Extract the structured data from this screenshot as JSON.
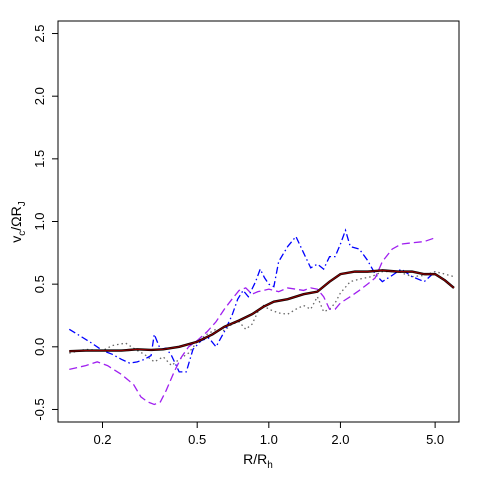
{
  "chart_data": {
    "type": "line",
    "title": "",
    "xlabel": {
      "base": "R/R",
      "sub": "h"
    },
    "ylabel": {
      "v": "v",
      "v_sub": "c",
      "rest": "/ΩR",
      "r_sub": "J"
    },
    "x_scale": "log",
    "xlim": [
      0.13,
      6.3
    ],
    "ylim": [
      -0.6,
      2.6
    ],
    "x_ticks": [
      0.2,
      0.5,
      1.0,
      2.0,
      5.0
    ],
    "x_tick_labels": [
      "0.2",
      "0.5",
      "1.0",
      "2.0",
      "5.0"
    ],
    "y_ticks": [
      -0.5,
      0.0,
      0.5,
      1.0,
      1.5,
      2.0,
      2.5
    ],
    "y_tick_labels": [
      "-0.5",
      "0.0",
      "0.5",
      "1.0",
      "1.5",
      "2.0",
      "2.5"
    ],
    "grid": false,
    "legend": "none",
    "series": [
      {
        "style": "solid",
        "color": "#000000",
        "overlay_color": "#8b0000",
        "points": [
          [
            0.145,
            -0.035
          ],
          [
            0.17,
            -0.03
          ],
          [
            0.2,
            -0.03
          ],
          [
            0.24,
            -0.03
          ],
          [
            0.28,
            -0.02
          ],
          [
            0.32,
            -0.025
          ],
          [
            0.36,
            -0.02
          ],
          [
            0.42,
            0.0
          ],
          [
            0.5,
            0.04
          ],
          [
            0.58,
            0.1
          ],
          [
            0.65,
            0.16
          ],
          [
            0.75,
            0.21
          ],
          [
            0.85,
            0.26
          ],
          [
            0.95,
            0.32
          ],
          [
            1.05,
            0.36
          ],
          [
            1.2,
            0.38
          ],
          [
            1.4,
            0.42
          ],
          [
            1.6,
            0.44
          ],
          [
            1.8,
            0.52
          ],
          [
            2.0,
            0.58
          ],
          [
            2.3,
            0.6
          ],
          [
            2.6,
            0.6
          ],
          [
            3.0,
            0.61
          ],
          [
            3.5,
            0.6
          ],
          [
            4.0,
            0.6
          ],
          [
            4.5,
            0.58
          ],
          [
            5.0,
            0.58
          ],
          [
            5.5,
            0.53
          ],
          [
            6.0,
            0.47
          ]
        ]
      },
      {
        "style": "dotted",
        "color": "#666666",
        "points": [
          [
            0.145,
            -0.05
          ],
          [
            0.17,
            -0.02
          ],
          [
            0.2,
            -0.03
          ],
          [
            0.22,
            0.01
          ],
          [
            0.25,
            0.03
          ],
          [
            0.28,
            -0.03
          ],
          [
            0.3,
            -0.06
          ],
          [
            0.33,
            -0.12
          ],
          [
            0.36,
            -0.08
          ],
          [
            0.39,
            -0.15
          ],
          [
            0.42,
            -0.1
          ],
          [
            0.46,
            -0.05
          ],
          [
            0.5,
            0.04
          ],
          [
            0.55,
            0.1
          ],
          [
            0.6,
            0.14
          ],
          [
            0.65,
            0.13
          ],
          [
            0.7,
            0.18
          ],
          [
            0.75,
            0.2
          ],
          [
            0.8,
            0.14
          ],
          [
            0.85,
            0.18
          ],
          [
            0.9,
            0.28
          ],
          [
            0.95,
            0.33
          ],
          [
            1.0,
            0.3
          ],
          [
            1.1,
            0.27
          ],
          [
            1.2,
            0.26
          ],
          [
            1.3,
            0.3
          ],
          [
            1.4,
            0.33
          ],
          [
            1.5,
            0.3
          ],
          [
            1.6,
            0.4
          ],
          [
            1.7,
            0.28
          ],
          [
            1.8,
            0.3
          ],
          [
            1.9,
            0.35
          ],
          [
            2.0,
            0.43
          ],
          [
            2.2,
            0.52
          ],
          [
            2.4,
            0.54
          ],
          [
            2.7,
            0.56
          ],
          [
            3.0,
            0.6
          ],
          [
            3.5,
            0.6
          ],
          [
            4.0,
            0.56
          ],
          [
            4.5,
            0.57
          ],
          [
            5.0,
            0.6
          ],
          [
            5.5,
            0.58
          ],
          [
            6.0,
            0.56
          ]
        ]
      },
      {
        "style": "dashdot",
        "color": "#0000ff",
        "points": [
          [
            0.145,
            0.14
          ],
          [
            0.16,
            0.09
          ],
          [
            0.18,
            0.03
          ],
          [
            0.2,
            -0.03
          ],
          [
            0.22,
            -0.06
          ],
          [
            0.24,
            -0.1
          ],
          [
            0.26,
            -0.13
          ],
          [
            0.28,
            -0.12
          ],
          [
            0.3,
            -0.1
          ],
          [
            0.32,
            -0.07
          ],
          [
            0.33,
            0.1
          ],
          [
            0.35,
            -0.02
          ],
          [
            0.37,
            -0.01
          ],
          [
            0.39,
            -0.07
          ],
          [
            0.42,
            -0.2
          ],
          [
            0.45,
            -0.2
          ],
          [
            0.48,
            -0.02
          ],
          [
            0.52,
            0.05
          ],
          [
            0.56,
            0.07
          ],
          [
            0.6,
            0.0
          ],
          [
            0.65,
            0.12
          ],
          [
            0.7,
            0.25
          ],
          [
            0.74,
            0.38
          ],
          [
            0.78,
            0.45
          ],
          [
            0.82,
            0.4
          ],
          [
            0.88,
            0.52
          ],
          [
            0.92,
            0.62
          ],
          [
            0.96,
            0.55
          ],
          [
            1.0,
            0.5
          ],
          [
            1.05,
            0.48
          ],
          [
            1.1,
            0.68
          ],
          [
            1.2,
            0.8
          ],
          [
            1.3,
            0.88
          ],
          [
            1.4,
            0.75
          ],
          [
            1.5,
            0.63
          ],
          [
            1.6,
            0.66
          ],
          [
            1.7,
            0.62
          ],
          [
            1.8,
            0.72
          ],
          [
            1.9,
            0.72
          ],
          [
            2.0,
            0.82
          ],
          [
            2.1,
            0.93
          ],
          [
            2.2,
            0.8
          ],
          [
            2.4,
            0.78
          ],
          [
            2.6,
            0.69
          ],
          [
            2.8,
            0.58
          ],
          [
            3.0,
            0.52
          ],
          [
            3.3,
            0.57
          ],
          [
            3.6,
            0.62
          ],
          [
            4.0,
            0.56
          ],
          [
            4.5,
            0.52
          ],
          [
            5.0,
            0.6
          ]
        ]
      },
      {
        "style": "dashed",
        "color": "#a020f0",
        "points": [
          [
            0.145,
            -0.18
          ],
          [
            0.17,
            -0.15
          ],
          [
            0.19,
            -0.12
          ],
          [
            0.21,
            -0.15
          ],
          [
            0.24,
            -0.22
          ],
          [
            0.27,
            -0.3
          ],
          [
            0.29,
            -0.4
          ],
          [
            0.31,
            -0.44
          ],
          [
            0.33,
            -0.46
          ],
          [
            0.35,
            -0.44
          ],
          [
            0.37,
            -0.35
          ],
          [
            0.4,
            -0.2
          ],
          [
            0.43,
            -0.08
          ],
          [
            0.46,
            0.0
          ],
          [
            0.5,
            0.05
          ],
          [
            0.55,
            0.12
          ],
          [
            0.6,
            0.2
          ],
          [
            0.65,
            0.3
          ],
          [
            0.7,
            0.38
          ],
          [
            0.75,
            0.45
          ],
          [
            0.8,
            0.47
          ],
          [
            0.85,
            0.42
          ],
          [
            0.9,
            0.44
          ],
          [
            0.95,
            0.45
          ],
          [
            1.0,
            0.46
          ],
          [
            1.1,
            0.44
          ],
          [
            1.2,
            0.47
          ],
          [
            1.3,
            0.46
          ],
          [
            1.4,
            0.45
          ],
          [
            1.5,
            0.47
          ],
          [
            1.6,
            0.46
          ],
          [
            1.7,
            0.4
          ],
          [
            1.8,
            0.3
          ],
          [
            1.9,
            0.3
          ],
          [
            2.0,
            0.35
          ],
          [
            2.2,
            0.4
          ],
          [
            2.4,
            0.45
          ],
          [
            2.6,
            0.5
          ],
          [
            2.8,
            0.55
          ],
          [
            3.0,
            0.68
          ],
          [
            3.3,
            0.78
          ],
          [
            3.6,
            0.82
          ],
          [
            4.0,
            0.83
          ],
          [
            4.5,
            0.84
          ],
          [
            5.0,
            0.87
          ]
        ]
      }
    ]
  }
}
